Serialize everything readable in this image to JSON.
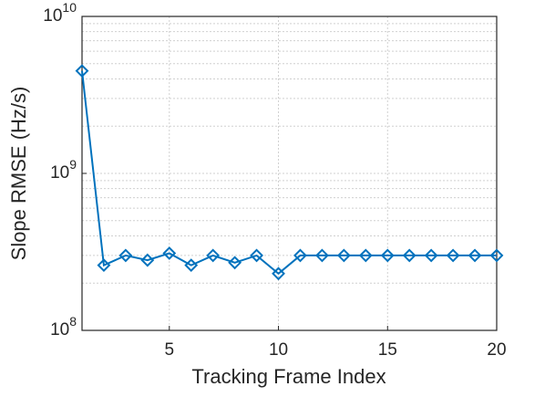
{
  "chart_data": {
    "type": "line",
    "xlabel": "Tracking Frame Index",
    "ylabel": "Slope RMSE (Hz/s)",
    "x": [
      1,
      2,
      3,
      4,
      5,
      6,
      7,
      8,
      9,
      10,
      11,
      12,
      13,
      14,
      15,
      16,
      17,
      18,
      19,
      20
    ],
    "series": [
      {
        "name": "Slope RMSE",
        "color": "#0072bd",
        "values": [
          4500000000,
          260000000,
          300000000,
          280000000,
          310000000,
          260000000,
          300000000,
          270000000,
          300000000,
          230000000,
          300000000,
          300000000,
          300000000,
          300000000,
          300000000,
          300000000,
          300000000,
          300000000,
          300000000,
          300000000
        ]
      }
    ],
    "xlim": [
      1,
      20
    ],
    "xticks": [
      5,
      10,
      15,
      20
    ],
    "ylim": [
      100000000,
      10000000000
    ],
    "yticks": [
      {
        "value": 100000000,
        "label": "10^8"
      },
      {
        "value": 1000000000,
        "label": "10^9"
      },
      {
        "value": 10000000000,
        "label": "10^10"
      }
    ],
    "yscale": "log",
    "grid": true,
    "minor_grid": true,
    "marker": "diamond"
  }
}
